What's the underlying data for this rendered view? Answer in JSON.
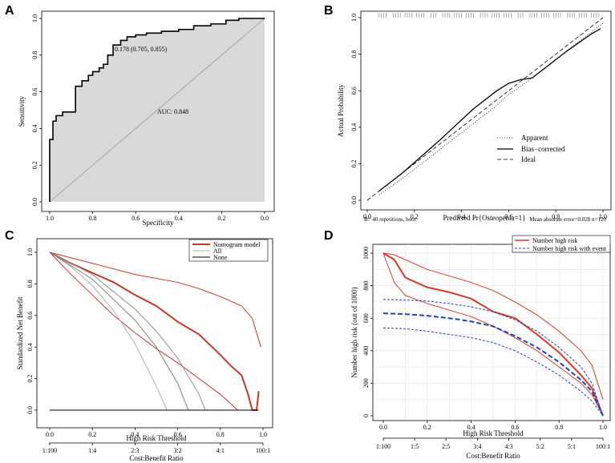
{
  "panels": {
    "A": "A",
    "B": "B",
    "C": "C",
    "D": "D"
  },
  "chart_data": [
    {
      "id": "A",
      "type": "line",
      "title": "",
      "xlabel": "Specificity",
      "ylabel": "Sensitivity",
      "xlim": [
        1.0,
        0.0
      ],
      "ylim": [
        0.0,
        1.0
      ],
      "x_ticks": [
        "1.0",
        "0.8",
        "0.6",
        "0.4",
        "0.2",
        "0.0"
      ],
      "y_ticks": [
        "0.0",
        "0.2",
        "0.4",
        "0.6",
        "0.8",
        "1.0"
      ],
      "series": [
        {
          "name": "ROC",
          "specificity": [
            1.0,
            1.0,
            0.985,
            0.985,
            0.97,
            0.97,
            0.94,
            0.94,
            0.88,
            0.88,
            0.85,
            0.85,
            0.82,
            0.82,
            0.8,
            0.8,
            0.77,
            0.77,
            0.75,
            0.75,
            0.73,
            0.73,
            0.705,
            0.705,
            0.67,
            0.67,
            0.64,
            0.64,
            0.6,
            0.6,
            0.55,
            0.55,
            0.48,
            0.48,
            0.4,
            0.4,
            0.33,
            0.33,
            0.25,
            0.25,
            0.18,
            0.18,
            0.12,
            0.12,
            0.06,
            0.06,
            0.0
          ],
          "sensitivity": [
            0.0,
            0.34,
            0.34,
            0.44,
            0.44,
            0.47,
            0.47,
            0.49,
            0.49,
            0.63,
            0.63,
            0.66,
            0.66,
            0.69,
            0.69,
            0.71,
            0.71,
            0.73,
            0.73,
            0.75,
            0.75,
            0.8,
            0.8,
            0.855,
            0.855,
            0.88,
            0.88,
            0.9,
            0.9,
            0.91,
            0.91,
            0.92,
            0.92,
            0.93,
            0.93,
            0.94,
            0.94,
            0.96,
            0.96,
            0.97,
            0.97,
            0.99,
            0.99,
            1.0,
            1.0,
            1.0,
            1.0
          ]
        },
        {
          "name": "Reference",
          "specificity": [
            1.0,
            0.0
          ],
          "sensitivity": [
            0.0,
            1.0
          ]
        }
      ],
      "annotations": {
        "cutoff": "0.178 (0.705, 0.855)",
        "auc": "AUC: 0.848"
      }
    },
    {
      "id": "B",
      "type": "line",
      "xlabel": "Predicted Pr{Osteopenia=1}",
      "ylabel": "Actual Probability",
      "xlim": [
        0.0,
        1.0
      ],
      "ylim": [
        0.0,
        1.0
      ],
      "x_ticks": [
        "0.0",
        "0.2",
        "0.4",
        "0.6",
        "0.8",
        "1.0"
      ],
      "y_ticks": [
        "0.0",
        "0.2",
        "0.4",
        "0.6",
        "0.8",
        "1.0"
      ],
      "series": [
        {
          "name": "Apparent",
          "style": "dotted",
          "x": [
            0.05,
            0.15,
            0.3,
            0.45,
            0.55,
            0.6,
            0.68,
            0.75,
            0.85,
            0.95,
            1.0
          ],
          "y": [
            0.03,
            0.12,
            0.27,
            0.42,
            0.52,
            0.58,
            0.65,
            0.72,
            0.82,
            0.92,
            0.97
          ]
        },
        {
          "name": "Bias-corrected",
          "style": "solid",
          "x": [
            0.05,
            0.15,
            0.3,
            0.45,
            0.55,
            0.6,
            0.65,
            0.7,
            0.75,
            0.85,
            0.95,
            0.99
          ],
          "y": [
            0.05,
            0.15,
            0.32,
            0.5,
            0.6,
            0.64,
            0.66,
            0.67,
            0.72,
            0.82,
            0.91,
            0.94
          ]
        },
        {
          "name": "Ideal",
          "style": "dashed",
          "x": [
            0.0,
            1.0
          ],
          "y": [
            0.0,
            1.0
          ]
        }
      ],
      "legend": [
        "Apparent",
        "Bias−corrected",
        "Ideal"
      ],
      "footnote_left": "B= 40 repetitions, boot",
      "footnote_right": "Mean absolute error=0.028 n=120"
    },
    {
      "id": "C",
      "type": "line",
      "xlabel": "High Risk Threshold",
      "ylabel": "Standardized Net Benefit",
      "x2label": "Cost:Benefit Ratio",
      "xlim": [
        0.0,
        1.0
      ],
      "ylim": [
        0.0,
        1.0
      ],
      "x_ticks": [
        "0.0",
        "0.2",
        "0.4",
        "0.6",
        "0.8",
        "1.0"
      ],
      "y_ticks": [
        "0.0",
        "0.2",
        "0.4",
        "0.6",
        "0.8",
        "1.0"
      ],
      "x2_ticks": [
        "1:100",
        "1:4",
        "2:3",
        "3:2",
        "4:1",
        "100:1"
      ],
      "legend": [
        "Nomogram model",
        "All",
        "None"
      ],
      "series": [
        {
          "name": "Nomogram model",
          "color": "#c0392b",
          "width": 2,
          "x": [
            0.0,
            0.1,
            0.2,
            0.3,
            0.4,
            0.5,
            0.6,
            0.7,
            0.8,
            0.85,
            0.9,
            0.93,
            0.95,
            0.97,
            0.98
          ],
          "y": [
            1.0,
            0.93,
            0.87,
            0.81,
            0.73,
            0.66,
            0.56,
            0.48,
            0.35,
            0.28,
            0.22,
            0.1,
            0.0,
            0.0,
            0.12
          ]
        },
        {
          "name": "Nomogram upper CI",
          "color": "#c0392b",
          "width": 1,
          "x": [
            0.0,
            0.2,
            0.4,
            0.6,
            0.7,
            0.8,
            0.9,
            0.95,
            0.99
          ],
          "y": [
            1.0,
            0.93,
            0.86,
            0.81,
            0.77,
            0.72,
            0.66,
            0.58,
            0.4
          ]
        },
        {
          "name": "Nomogram lower CI",
          "color": "#c0392b",
          "width": 1,
          "x": [
            0.0,
            0.1,
            0.2,
            0.3,
            0.4,
            0.5,
            0.6,
            0.7,
            0.8,
            0.85,
            0.88
          ],
          "y": [
            1.0,
            0.86,
            0.73,
            0.6,
            0.49,
            0.39,
            0.3,
            0.2,
            0.1,
            0.04,
            0.0
          ]
        },
        {
          "name": "All",
          "color": "#b0b0b0",
          "width": 1,
          "x": [
            0.0,
            0.1,
            0.2,
            0.3,
            0.4,
            0.5,
            0.55
          ],
          "y": [
            1.0,
            0.91,
            0.79,
            0.63,
            0.42,
            0.15,
            0.0
          ]
        },
        {
          "name": "All upper",
          "color": "#909090",
          "width": 1,
          "x": [
            0.0,
            0.2,
            0.4,
            0.5,
            0.6,
            0.7,
            0.73
          ],
          "y": [
            1.0,
            0.86,
            0.64,
            0.5,
            0.33,
            0.1,
            0.0
          ]
        },
        {
          "name": "All mid",
          "color": "#808080",
          "width": 1,
          "x": [
            0.0,
            0.2,
            0.4,
            0.5,
            0.6,
            0.65
          ],
          "y": [
            1.0,
            0.83,
            0.57,
            0.4,
            0.17,
            0.0
          ]
        },
        {
          "name": "None",
          "color": "#000000",
          "width": 1,
          "x": [
            0.0,
            0.98
          ],
          "y": [
            0.0,
            0.0
          ]
        }
      ]
    },
    {
      "id": "D",
      "type": "line",
      "xlabel": "High Risk Threshold",
      "ylabel": "Number high risk (out of 1000)",
      "x2label": "Cost:Benefit Ratio",
      "xlim": [
        0.0,
        1.0
      ],
      "ylim": [
        0,
        1000
      ],
      "x_ticks": [
        "0.0",
        "0.2",
        "0.4",
        "0.6",
        "0.8",
        "1.0"
      ],
      "y_ticks": [
        "0",
        "200",
        "400",
        "600",
        "800",
        "1000"
      ],
      "x2_ticks": [
        "1:100",
        "1:5",
        "2:5",
        "3:4",
        "4:3",
        "5:2",
        "5:1",
        "100:1"
      ],
      "legend": [
        "Number high risk",
        "Number high risk with event"
      ],
      "series": [
        {
          "name": "Number high risk",
          "color": "#d63a2a",
          "width": 2,
          "x": [
            0.0,
            0.05,
            0.1,
            0.15,
            0.2,
            0.3,
            0.4,
            0.5,
            0.6,
            0.7,
            0.8,
            0.9,
            0.95,
            1.0
          ],
          "y": [
            1000,
            960,
            850,
            820,
            790,
            760,
            720,
            640,
            600,
            500,
            390,
            250,
            170,
            0
          ]
        },
        {
          "name": "Number high risk upper",
          "color": "#d63a2a",
          "width": 1,
          "x": [
            0.0,
            0.05,
            0.1,
            0.2,
            0.3,
            0.4,
            0.5,
            0.6,
            0.7,
            0.8,
            0.9,
            0.95,
            1.0
          ],
          "y": [
            1000,
            990,
            960,
            900,
            860,
            820,
            770,
            700,
            620,
            520,
            400,
            310,
            100
          ]
        },
        {
          "name": "Number high risk lower",
          "color": "#d63a2a",
          "width": 1,
          "x": [
            0.0,
            0.05,
            0.1,
            0.2,
            0.3,
            0.4,
            0.5,
            0.6,
            0.7,
            0.8,
            0.9,
            0.95,
            1.0
          ],
          "y": [
            1000,
            820,
            740,
            690,
            650,
            610,
            550,
            480,
            400,
            300,
            200,
            130,
            0
          ]
        },
        {
          "name": "Number high risk with event",
          "color": "#2244bb",
          "width": 2,
          "dash": "6,3",
          "x": [
            0.0,
            0.1,
            0.2,
            0.3,
            0.4,
            0.5,
            0.6,
            0.7,
            0.8,
            0.9,
            0.95,
            1.0
          ],
          "y": [
            630,
            625,
            615,
            600,
            580,
            550,
            490,
            420,
            330,
            220,
            150,
            0
          ]
        },
        {
          "name": "With event upper",
          "color": "#2244bb",
          "width": 1,
          "dash": "3,2",
          "x": [
            0.0,
            0.1,
            0.2,
            0.3,
            0.4,
            0.5,
            0.6,
            0.7,
            0.8,
            0.9,
            0.95,
            1.0
          ],
          "y": [
            715,
            712,
            705,
            690,
            670,
            640,
            590,
            520,
            420,
            300,
            200,
            0
          ]
        },
        {
          "name": "With event lower",
          "color": "#2244bb",
          "width": 1,
          "dash": "3,2",
          "x": [
            0.0,
            0.1,
            0.2,
            0.3,
            0.4,
            0.5,
            0.6,
            0.7,
            0.8,
            0.9,
            0.95,
            1.0
          ],
          "y": [
            540,
            535,
            520,
            500,
            480,
            450,
            400,
            330,
            250,
            150,
            90,
            0
          ]
        }
      ]
    }
  ]
}
